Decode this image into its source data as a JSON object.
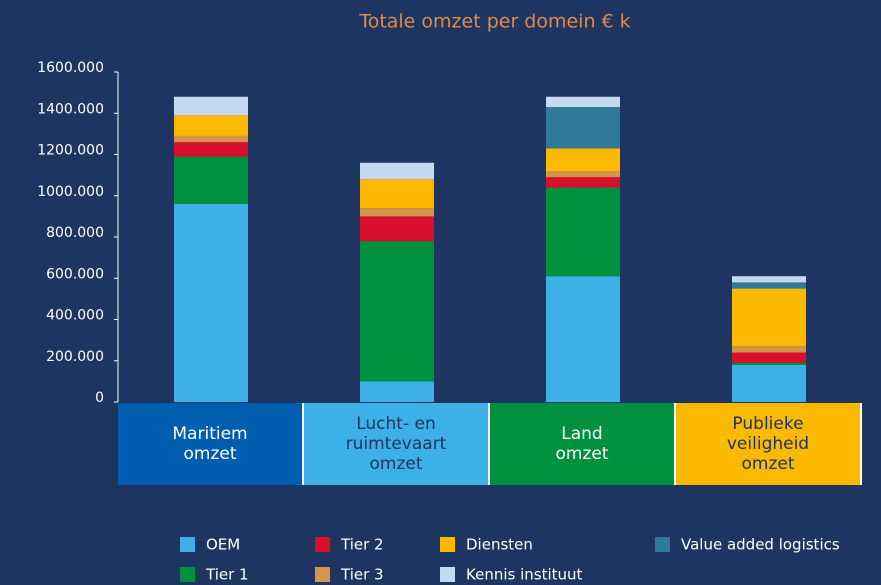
{
  "chart_data": {
    "type": "stacked_bar",
    "title": "Totale omzet per domein € k",
    "categories": [
      "Maritiem\nomzet",
      "Lucht- en\nruimtevaart\nomzet",
      "Land\nomzet",
      "Publieke\nveiligheid\nomzet"
    ],
    "category_colors": [
      "#005eb0",
      "#3db0e8",
      "#00913f",
      "#fbb900"
    ],
    "series": [
      {
        "name": "OEM",
        "color": "#3db0e8",
        "values": [
          960,
          100,
          610,
          180
        ]
      },
      {
        "name": "Tier 1",
        "color": "#00913f",
        "values": [
          230,
          680,
          430,
          10
        ]
      },
      {
        "name": "Tier 2",
        "color": "#d8102b",
        "values": [
          70,
          120,
          50,
          50
        ]
      },
      {
        "name": "Tier 3",
        "color": "#d4954a",
        "values": [
          30,
          40,
          30,
          30
        ]
      },
      {
        "name": "Diensten",
        "color": "#fbb900",
        "values": [
          100,
          140,
          110,
          280
        ]
      },
      {
        "name": "Value added logistics",
        "color": "#2f7a99",
        "values": [
          0,
          0,
          200,
          30
        ]
      },
      {
        "name": "Kennis instituut",
        "color": "#c5d9f1",
        "values": [
          90,
          80,
          50,
          30
        ]
      }
    ],
    "ylim": [
      0,
      1600
    ],
    "yticks": [
      0,
      {
        "value": 200,
        "label": "200.000"
      },
      {
        "value": 400,
        "label": "400.000"
      },
      {
        "value": 600,
        "label": "600.000"
      },
      {
        "value": 800,
        "label": "800.000"
      },
      {
        "value": 1000,
        "label": "1000.000"
      },
      {
        "value": 1200,
        "label": "1200.000"
      },
      {
        "value": 1400,
        "label": "1400.000"
      },
      {
        "value": 1600,
        "label": "1600.000"
      }
    ],
    "legend": "bottom"
  }
}
